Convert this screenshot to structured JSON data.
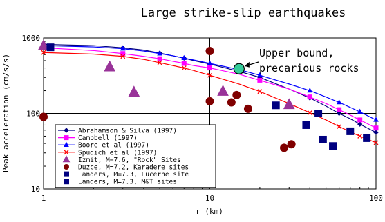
{
  "chart_data": {
    "type": "scatter",
    "title": "Large strike-slip earthquakes",
    "xlabel": "r (km)",
    "ylabel": "Peak acceleration (cm/s/s)",
    "x_scale": "log",
    "y_scale": "log",
    "xlim": [
      1,
      100
    ],
    "ylim": [
      10,
      1000
    ],
    "x_ticks": [
      "1",
      "10",
      "100"
    ],
    "y_ticks": [
      "10",
      "100",
      "1000"
    ],
    "grid": false,
    "reference_lines": {
      "x": 10,
      "y": 100
    },
    "legend_position": "bottom-left",
    "annotation": {
      "text_lines": [
        "Upper bound,",
        "precarious rocks"
      ],
      "point": [
        15,
        390
      ],
      "marker_color": "#33cc99"
    },
    "series": [
      {
        "name": "Abrahamson & Silva (1997)",
        "kind": "line",
        "color": "#000080",
        "marker": "diamond",
        "x": [
          1,
          2,
          3,
          4,
          5,
          6,
          7,
          8,
          10,
          15,
          20,
          30,
          40,
          50,
          60,
          70,
          80,
          90,
          100
        ],
        "y": [
          820,
          790,
          740,
          690,
          630,
          580,
          540,
          500,
          450,
          360,
          300,
          210,
          160,
          125,
          100,
          85,
          72,
          63,
          56
        ]
      },
      {
        "name": "Campbell (1997)",
        "kind": "line",
        "color": "#ff00ff",
        "marker": "square",
        "x": [
          1,
          2,
          3,
          4,
          5,
          6,
          7,
          8,
          10,
          15,
          20,
          30,
          40,
          50,
          60,
          70,
          80,
          90,
          100
        ],
        "y": [
          740,
          680,
          620,
          570,
          530,
          490,
          460,
          430,
          400,
          330,
          275,
          210,
          165,
          135,
          112,
          95,
          82,
          72,
          64
        ]
      },
      {
        "name": "Boore et al (1997)",
        "kind": "line",
        "color": "#0000ff",
        "marker": "triangle",
        "x": [
          1,
          2,
          3,
          4,
          5,
          6,
          7,
          8,
          10,
          15,
          20,
          30,
          40,
          50,
          60,
          70,
          80,
          90,
          100
        ],
        "y": [
          790,
          760,
          720,
          670,
          620,
          580,
          540,
          510,
          460,
          380,
          320,
          245,
          200,
          165,
          140,
          120,
          105,
          92,
          82
        ]
      },
      {
        "name": "Spudich et al (1997)",
        "kind": "line",
        "color": "#ff0000",
        "marker": "x",
        "x": [
          1,
          2,
          3,
          4,
          5,
          6,
          7,
          8,
          10,
          15,
          20,
          30,
          40,
          50,
          60,
          70,
          80,
          90,
          100
        ],
        "y": [
          640,
          610,
          570,
          520,
          470,
          430,
          400,
          370,
          320,
          245,
          195,
          135,
          102,
          82,
          67,
          57,
          50,
          45,
          41
        ]
      },
      {
        "name": "Izmit, M=7.6, \"Rock\" Sites",
        "kind": "points",
        "color": "#993399",
        "marker": "triangle",
        "x": [
          1,
          2.5,
          3.5,
          12,
          30
        ],
        "y": [
          780,
          410,
          190,
          195,
          130
        ]
      },
      {
        "name": "Duzce, M=7.2, Karadere sites",
        "kind": "points",
        "color": "#800000",
        "marker": "circle",
        "x": [
          1,
          10,
          10,
          13.5,
          14.5,
          17,
          28,
          31
        ],
        "y": [
          90,
          670,
          145,
          140,
          175,
          115,
          35,
          39
        ]
      },
      {
        "name": "Landers, M=7.3, Lucerne site",
        "kind": "points",
        "color": "#000080",
        "marker": "square",
        "x": [
          1.1
        ],
        "y": [
          750
        ]
      },
      {
        "name": "Landers, M=7.3, M&T sites",
        "kind": "points",
        "color": "#000080",
        "marker": "square",
        "x": [
          25,
          38,
          45,
          48,
          55,
          70,
          88
        ],
        "y": [
          128,
          70,
          100,
          45,
          37,
          58,
          47
        ]
      }
    ]
  }
}
